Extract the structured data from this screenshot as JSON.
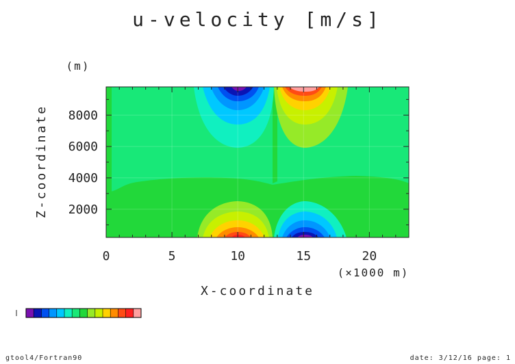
{
  "chart_data": {
    "type": "heatmap",
    "title": "u-velocity [m/s]",
    "xlabel": "X-coordinate",
    "ylabel": "Z-coordinate",
    "y_unit_label": "(m)",
    "x_unit_label": "(×1000 m)",
    "xlim": [
      0,
      23
    ],
    "ylim": [
      200,
      9800
    ],
    "x_ticks": [
      "0",
      "5",
      "10",
      "15",
      "20"
    ],
    "x_tick_values": [
      0,
      5,
      10,
      15,
      20
    ],
    "y_ticks": [
      "2000",
      "4000",
      "6000",
      "8000"
    ],
    "y_tick_values": [
      2000,
      4000,
      6000,
      8000
    ],
    "background_level": "green",
    "features": [
      {
        "name": "upper-left negative core",
        "x_center": 10,
        "z_top": 9800,
        "sign": "negative"
      },
      {
        "name": "upper-right positive core",
        "x_center": 15,
        "z_top": 9800,
        "sign": "positive"
      },
      {
        "name": "lower-left positive core",
        "x_center": 10,
        "z_bottom": 200,
        "sign": "positive"
      },
      {
        "name": "lower-right negative core",
        "x_center": 15,
        "z_bottom": 200,
        "sign": "negative"
      }
    ],
    "colorbar": [
      "#7a10b0",
      "#0a14b4",
      "#0050f0",
      "#0096ff",
      "#00c8ff",
      "#10f0c0",
      "#18e878",
      "#22d83a",
      "#96ea28",
      "#c8f000",
      "#ffd200",
      "#ff8c00",
      "#ff4b14",
      "#ff2020",
      "#ffa0a0"
    ]
  },
  "footer": {
    "left": "gtool4/Fortran90",
    "right": "date: 3/12/16 page: 1"
  }
}
